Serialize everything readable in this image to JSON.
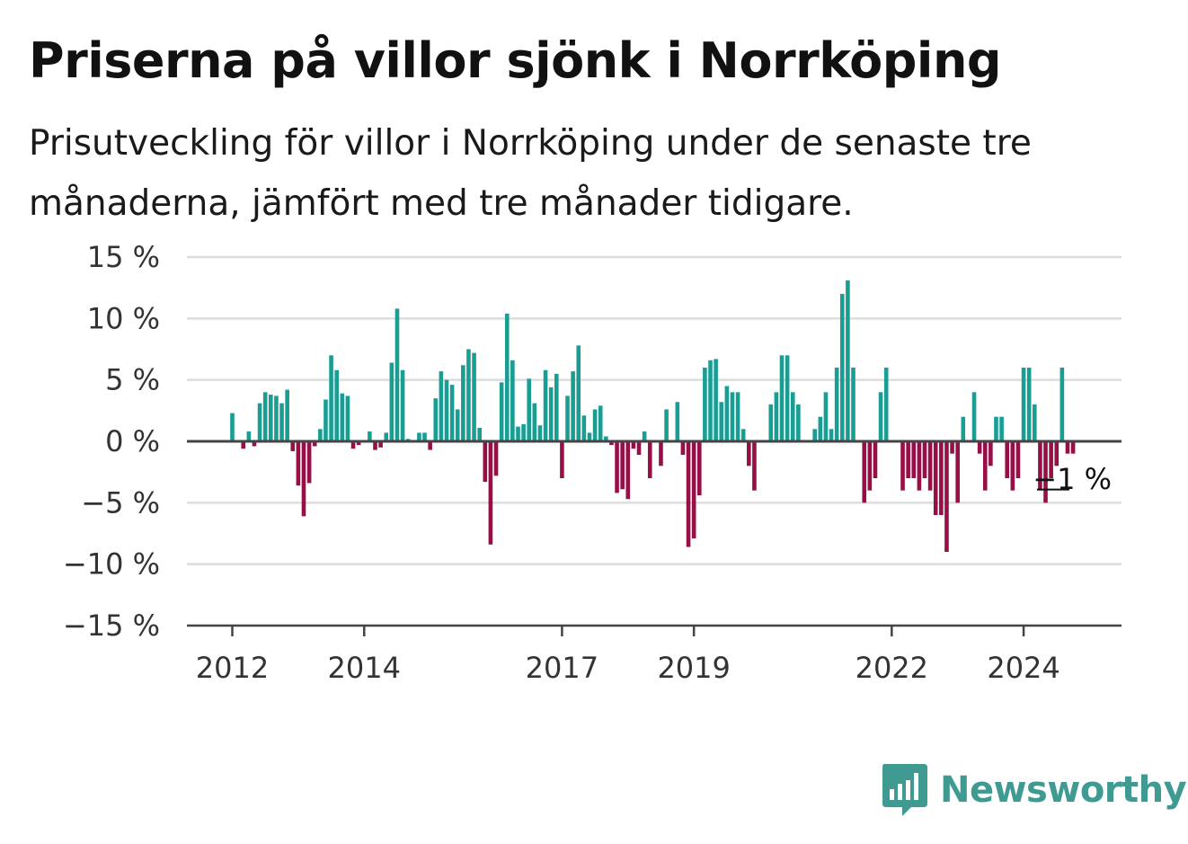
{
  "header": {
    "title": "Priserna på villor sjönk i Norrköping",
    "subtitle": "Prisutveckling för villor i Norrköping under de senaste tre månaderna, jämfört med tre månader tidigare."
  },
  "brand": {
    "name": "Newsworthy",
    "icon": "newsworthy-logo-icon"
  },
  "colors": {
    "positive": "#1a9e94",
    "negative": "#980f48",
    "grid": "#dddddd",
    "axis": "#444444"
  },
  "chart_data": {
    "type": "bar",
    "title": "Priserna på villor sjönk i Norrköping",
    "subtitle": "Prisutveckling för villor i Norrköping under de senaste tre månaderna, jämfört med tre månader tidigare.",
    "unit": "%",
    "ylim": [
      -15,
      15
    ],
    "yticks": [
      15,
      10,
      5,
      0,
      -5,
      -10,
      -15
    ],
    "ytick_labels": [
      "15 %",
      "10 %",
      "5 %",
      "0 %",
      "−5 %",
      "−10 %",
      "−15 %"
    ],
    "xticks": [
      {
        "label": "2012",
        "month": "2012-01"
      },
      {
        "label": "2014",
        "month": "2014-01"
      },
      {
        "label": "2017",
        "month": "2017-01"
      },
      {
        "label": "2019",
        "month": "2019-01"
      },
      {
        "label": "2022",
        "month": "2022-01"
      },
      {
        "label": "2024",
        "month": "2024-01"
      }
    ],
    "grid": true,
    "x_start": "2012-01",
    "values": [
      2.3,
      0,
      -0.6,
      0.8,
      -0.4,
      3.1,
      4.0,
      3.8,
      3.7,
      3.1,
      4.2,
      -0.8,
      -3.6,
      -6.1,
      -3.4,
      -0.4,
      1.0,
      3.4,
      7.0,
      5.8,
      3.9,
      3.7,
      -0.6,
      -0.3,
      0,
      0.8,
      -0.7,
      -0.5,
      0.7,
      6.4,
      10.8,
      5.8,
      0.2,
      0.1,
      0.7,
      0.7,
      -0.7,
      3.5,
      5.7,
      5.0,
      4.6,
      2.6,
      6.2,
      7.5,
      7.2,
      1.1,
      -3.3,
      -8.4,
      -2.8,
      4.8,
      10.4,
      6.6,
      1.2,
      1.4,
      5.1,
      3.1,
      1.3,
      5.8,
      4.4,
      5.5,
      -3.0,
      3.7,
      5.7,
      7.8,
      2.1,
      0.7,
      2.6,
      2.9,
      0.4,
      -0.3,
      -4.2,
      -3.9,
      -4.7,
      -0.6,
      -1.1,
      0.8,
      -3.0,
      0,
      -2.0,
      2.6,
      0,
      3.2,
      -1.1,
      -8.6,
      -7.9,
      -4.4,
      6.0,
      6.6,
      6.7,
      3.2,
      4.5,
      4.0,
      4.0,
      1.0,
      -2.0,
      -4.0,
      0,
      0,
      3.0,
      4.0,
      7.0,
      7.0,
      4.0,
      3.0,
      0,
      0,
      1.0,
      2.0,
      4.0,
      1.0,
      6.0,
      12.0,
      13.1,
      6.0,
      0,
      -5.0,
      -4.0,
      -3.0,
      4.0,
      6.0,
      0,
      0,
      -4.0,
      -3.0,
      -3.0,
      -4.0,
      -3.0,
      -4.0,
      -6.0,
      -6.0,
      -9.0,
      -1.0,
      -5.0,
      2.0,
      0,
      4.0,
      -1.0,
      -4.0,
      -2.0,
      2.0,
      2.0,
      -3.0,
      -4.0,
      -3.0,
      6.0,
      6.0,
      3.0,
      -4.0,
      -5.0,
      -3.0,
      -2.0,
      6.0,
      -1.0,
      -1.0
    ],
    "annotation": {
      "label": "−1 %",
      "month": "2024-09",
      "value": -1.0
    }
  }
}
